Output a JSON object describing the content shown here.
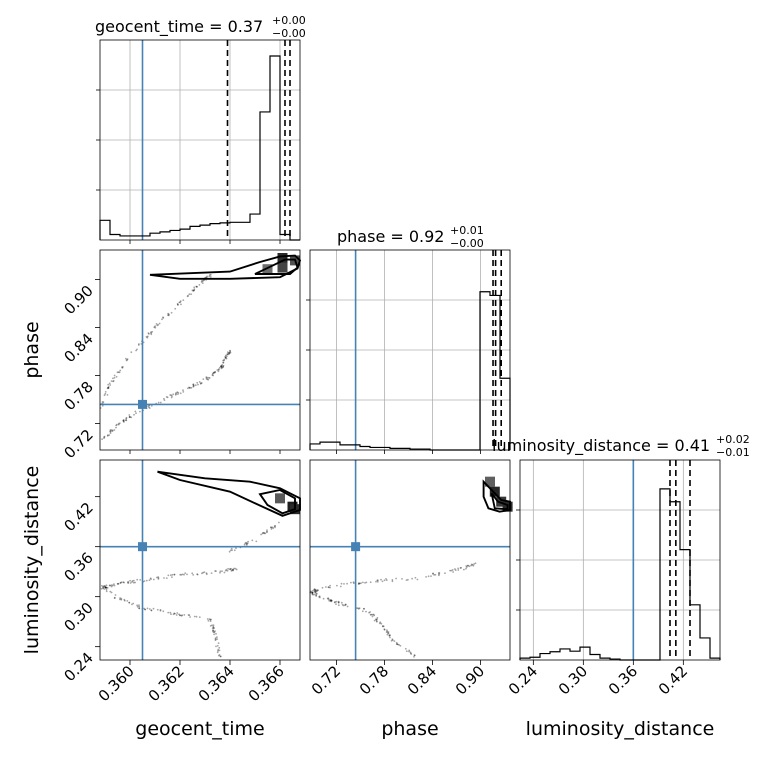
{
  "chart_data": {
    "type": "corner",
    "parameters": [
      "geocent_time",
      "phase",
      "luminosity_distance"
    ],
    "truths": {
      "geocent_time": 0.3605,
      "phase": 0.744,
      "luminosity_distance": 0.36
    },
    "titles": [
      {
        "name": "geocent_time",
        "value": "0.37",
        "plus": "+0.00",
        "minus": "−0.00"
      },
      {
        "name": "phase",
        "value": "0.92",
        "plus": "+0.01",
        "minus": "−0.00"
      },
      {
        "name": "luminosity_distance",
        "value": "0.41",
        "plus": "+0.02",
        "minus": "−0.01"
      }
    ],
    "axes": {
      "geocent_time": {
        "range": [
          0.3588,
          0.3668
        ],
        "ticks": [
          "0.360",
          "0.362",
          "0.364",
          "0.366"
        ]
      },
      "phase": {
        "range": [
          0.687,
          0.937
        ],
        "ticks": [
          "0.72",
          "0.78",
          "0.84",
          "0.90"
        ]
      },
      "luminosity_distance": {
        "range": [
          0.224,
          0.464
        ],
        "ticks": [
          "0.24",
          "0.30",
          "0.36",
          "0.42"
        ]
      }
    },
    "histograms": {
      "geocent_time": {
        "bin_edges": [
          0.3588,
          0.3592,
          0.3596,
          0.36,
          0.3604,
          0.3608,
          0.3612,
          0.3616,
          0.362,
          0.3624,
          0.3628,
          0.3632,
          0.3636,
          0.364,
          0.3644,
          0.3648,
          0.3652,
          0.3656,
          0.366,
          0.3664,
          0.3668
        ],
        "counts": [
          0.107,
          0.03,
          0.022,
          0.022,
          0.022,
          0.037,
          0.044,
          0.052,
          0.059,
          0.074,
          0.081,
          0.089,
          0.093,
          0.096,
          0.096,
          0.141,
          0.696,
          1.0,
          0.03,
          0
        ],
        "quantiles": [
          0.3639,
          0.3662,
          0.3664
        ]
      },
      "phase": {
        "bin_edges": [
          0.687,
          0.6995,
          0.712,
          0.7245,
          0.737,
          0.7495,
          0.762,
          0.7745,
          0.787,
          0.7995,
          0.812,
          0.8245,
          0.837,
          0.8495,
          0.862,
          0.8745,
          0.887,
          0.8995,
          0.912,
          0.9245,
          0.937
        ],
        "counts": [
          0.033,
          0.043,
          0.043,
          0.028,
          0.028,
          0.019,
          0.014,
          0.014,
          0.009,
          0.009,
          0.005,
          0.005,
          0,
          0,
          0,
          0,
          0,
          0.86,
          0.84,
          0.39
        ],
        "quantiles": [
          0.9158,
          0.919,
          0.926
        ]
      },
      "luminosity_distance": {
        "bin_edges": [
          0.224,
          0.236,
          0.248,
          0.26,
          0.272,
          0.284,
          0.296,
          0.308,
          0.32,
          0.332,
          0.344,
          0.356,
          0.368,
          0.38,
          0.392,
          0.404,
          0.416,
          0.428,
          0.44,
          0.452,
          0.464
        ],
        "counts": [
          0.01,
          0.015,
          0.035,
          0.045,
          0.06,
          0.048,
          0.07,
          0.03,
          0.01,
          0.005,
          0,
          0,
          0,
          0,
          0.93,
          0.86,
          0.6,
          0.3,
          0.12,
          0.01
        ],
        "quantiles": [
          0.404,
          0.411,
          0.428
        ]
      }
    },
    "grid": true,
    "colors": {
      "truth": "#4682b4",
      "hist": "#000000",
      "density": "#808080"
    }
  }
}
